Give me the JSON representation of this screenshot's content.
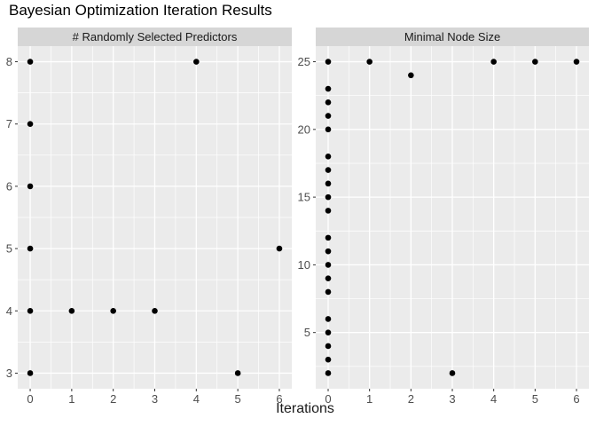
{
  "title": "Bayesian Optimization Iteration Results",
  "colors": {
    "plot_bg": "#ffffff",
    "panel_bg": "#ebebeb",
    "strip_bg": "#d6d6d6",
    "grid": "#ffffff",
    "point": "#000000",
    "axis_text": "#4d4d4d",
    "tick_mark": "#333333",
    "strip_text": "#1a1a1a",
    "title_text": "#000000",
    "axis_title_text": "#1a1a1a"
  },
  "chart_data": {
    "type": "scatter",
    "title": "Bayesian Optimization Iteration Results",
    "xlabel": "Iterations",
    "ylabel": "",
    "legend": "none",
    "grid": "on",
    "facet": "columns",
    "x_ticks": [
      0,
      1,
      2,
      3,
      4,
      5,
      6
    ],
    "x_minor": [
      0.5,
      1.5,
      2.5,
      3.5,
      4.5,
      5.5
    ],
    "xlim": [
      -0.3,
      6.3
    ],
    "panels": [
      {
        "facet_label": "# Randomly Selected Predictors",
        "ylim": [
          2.75,
          8.25
        ],
        "y_ticks": [
          3,
          4,
          5,
          6,
          7,
          8
        ],
        "y_minor": [
          3.5,
          4.5,
          5.5,
          6.5,
          7.5
        ],
        "points": [
          [
            0,
            3
          ],
          [
            0,
            4
          ],
          [
            0,
            5
          ],
          [
            0,
            6
          ],
          [
            0,
            7
          ],
          [
            0,
            8
          ],
          [
            1,
            4
          ],
          [
            2,
            4
          ],
          [
            3,
            4
          ],
          [
            4,
            8
          ],
          [
            5,
            3
          ],
          [
            6,
            5
          ]
        ]
      },
      {
        "facet_label": "Minimal Node Size",
        "ylim": [
          0.85,
          26.15
        ],
        "y_ticks": [
          5,
          10,
          15,
          20,
          25
        ],
        "y_minor": [
          2.5,
          7.5,
          12.5,
          17.5,
          22.5
        ],
        "points": [
          [
            0,
            2
          ],
          [
            0,
            3
          ],
          [
            0,
            4
          ],
          [
            0,
            5
          ],
          [
            0,
            6
          ],
          [
            0,
            8
          ],
          [
            0,
            9
          ],
          [
            0,
            10
          ],
          [
            0,
            11
          ],
          [
            0,
            12
          ],
          [
            0,
            14
          ],
          [
            0,
            15
          ],
          [
            0,
            16
          ],
          [
            0,
            17
          ],
          [
            0,
            18
          ],
          [
            0,
            20
          ],
          [
            0,
            21
          ],
          [
            0,
            22
          ],
          [
            0,
            23
          ],
          [
            0,
            25
          ],
          [
            1,
            25
          ],
          [
            2,
            24
          ],
          [
            3,
            2
          ],
          [
            4,
            25
          ],
          [
            5,
            25
          ],
          [
            6,
            25
          ]
        ]
      }
    ]
  }
}
